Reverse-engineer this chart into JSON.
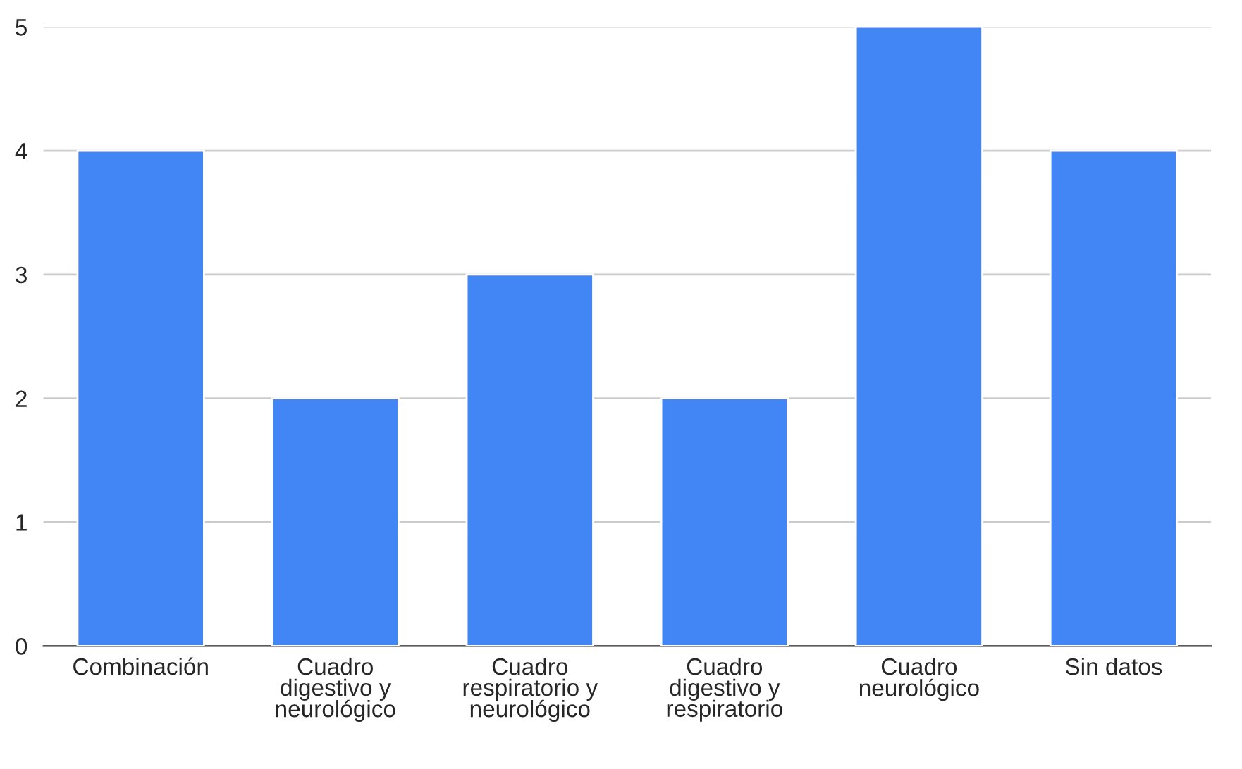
{
  "chart_data": {
    "type": "bar",
    "categories": [
      "Combinación",
      "Cuadro\ndigestivo y\nneurológico",
      "Cuadro\nrespiratorio y\nneurológico",
      "Cuadro\ndigestivo y\nrespiratorio",
      "Cuadro\nneurológico",
      "Sin datos"
    ],
    "values": [
      4,
      2,
      3,
      2,
      5,
      4
    ],
    "color": "#4285f4",
    "ylim": [
      0,
      5
    ],
    "yticks": [
      0,
      1,
      2,
      3,
      4,
      5
    ],
    "grid": "y",
    "legend": false
  }
}
